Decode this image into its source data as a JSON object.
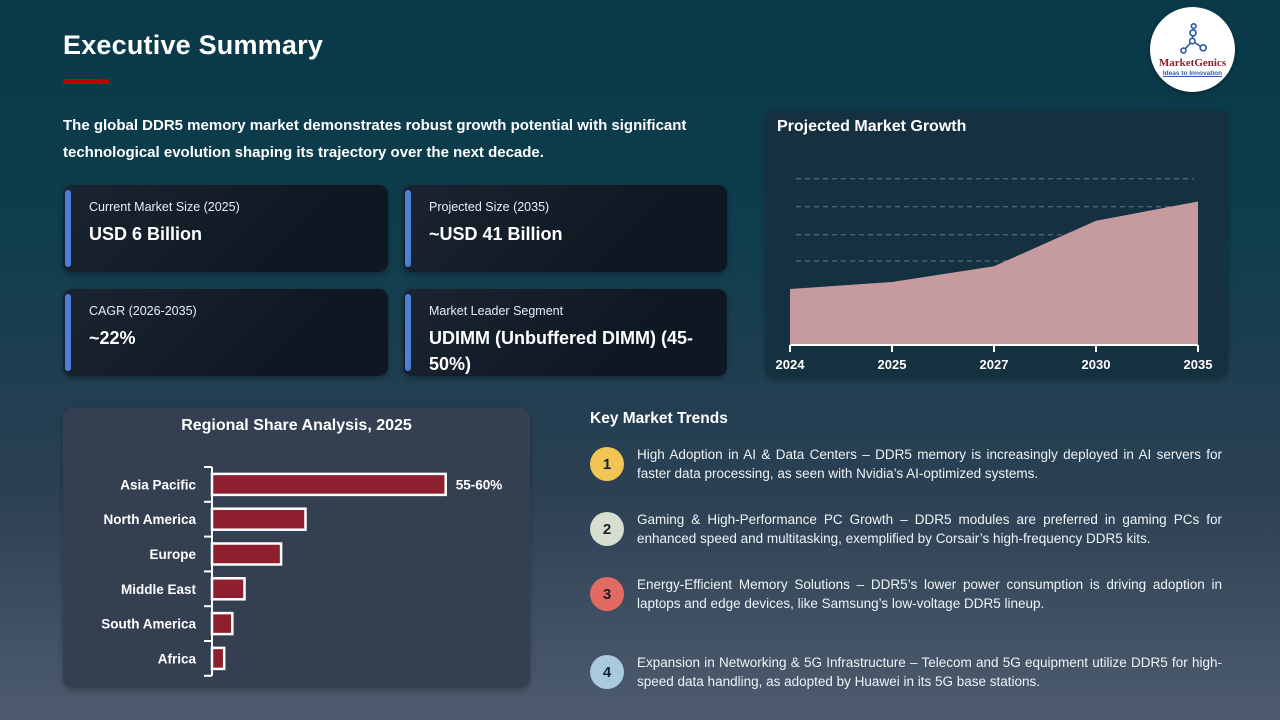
{
  "page": {
    "title": "Executive Summary",
    "intro": "The global DDR5 memory market demonstrates robust growth potential with significant technological evolution shaping its trajectory over the next decade.",
    "accent_red": "#c00000",
    "card_accent_blue": "#4d7fd6"
  },
  "logo": {
    "name": "MarketGenics",
    "tagline": "Ideas to Innovation"
  },
  "stats": [
    {
      "label": "Current Market Size (2025)",
      "value": "USD 6 Billion"
    },
    {
      "label": "Projected Size (2035)",
      "value": "~USD 41 Billion"
    },
    {
      "label": "CAGR (2026-2035)",
      "value": "~22%"
    },
    {
      "label": "Market Leader Segment",
      "value": "UDIMM (Unbuffered DIMM) (45-50%)"
    }
  ],
  "trends": {
    "title": "Key Market Trends",
    "items": [
      {
        "num": "1",
        "color": "#f0c455",
        "text": "High Adoption in AI & Data Centers – DDR5 memory is increasingly deployed in AI servers for faster data processing, as seen with Nvidia’s AI-optimized systems."
      },
      {
        "num": "2",
        "color": "#d5decf",
        "text": "Gaming & High-Performance PC Growth – DDR5 modules are preferred in gaming PCs for enhanced speed and multitasking, exemplified by Corsair’s high-frequency DDR5 kits."
      },
      {
        "num": "3",
        "color": "#e16a63",
        "text": "Energy-Efficient Memory Solutions – DDR5’s lower power consumption is driving adoption in laptops and edge devices, like Samsung’s low-voltage DDR5 lineup."
      },
      {
        "num": "4",
        "color": "#a9c9dd",
        "text": "Expansion in Networking & 5G Infrastructure – Telecom and 5G equipment utilize DDR5 for high-speed data handling, as adopted by Huawei in its 5G base stations."
      }
    ]
  },
  "chart_data": [
    {
      "type": "area",
      "title": "Projected Market Growth",
      "categories": [
        "2024",
        "2025",
        "2027",
        "2030",
        "2035"
      ],
      "values": [
        32,
        36,
        45,
        71,
        82
      ],
      "ylim": [
        0,
        100
      ],
      "y_axis_labels_visible": false,
      "gridlines": [
        48,
        63,
        79,
        95
      ],
      "grid_style": "dashed",
      "fill_color": "#c59ba0",
      "legend": "none"
    },
    {
      "type": "bar",
      "title": "Regional Share Analysis, 2025",
      "orientation": "horizontal",
      "categories": [
        "Asia Pacific",
        "North America",
        "Europe",
        "Middle East",
        "South America",
        "Africa"
      ],
      "values": [
        57.5,
        23,
        17,
        8,
        5,
        3
      ],
      "data_labels": [
        "55-60%",
        "",
        "",
        "",
        "",
        ""
      ],
      "xlim": [
        0,
        62
      ],
      "unit": "%",
      "bar_color": "#8e1f2e",
      "bar_border_color": "#ffffff",
      "legend": "none"
    }
  ]
}
